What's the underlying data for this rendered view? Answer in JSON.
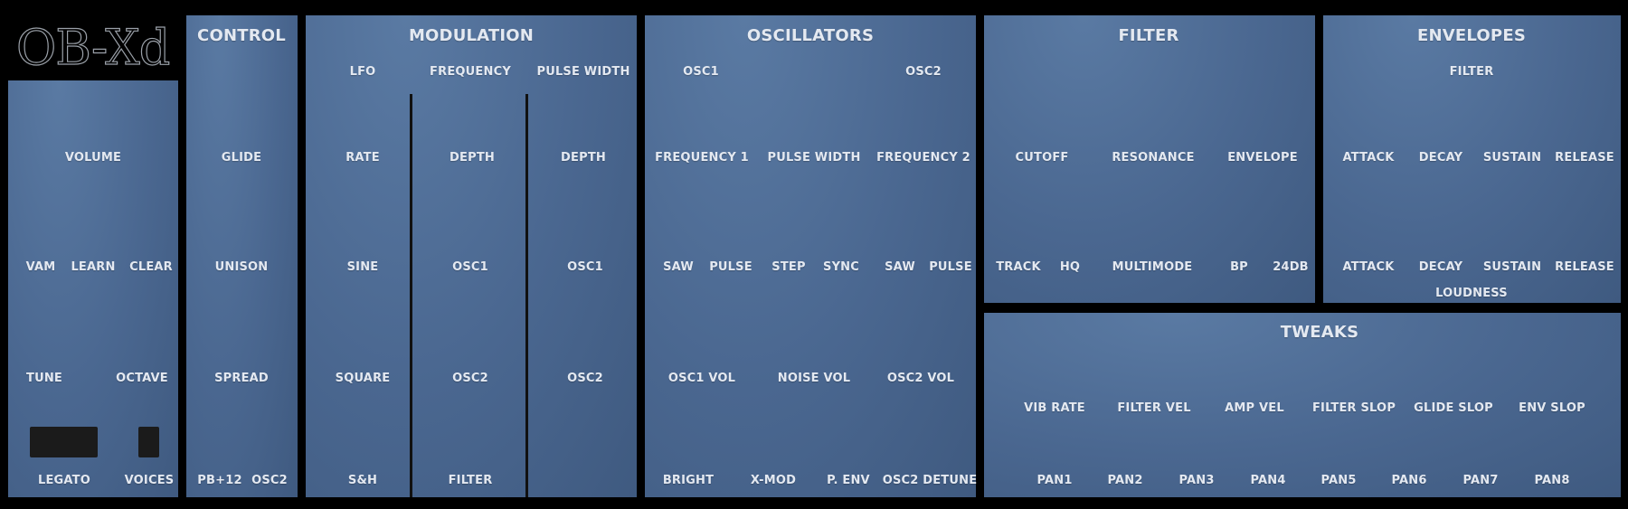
{
  "logo": "OB-Xd",
  "master": {
    "volume": "VOLUME",
    "vam": "VAM",
    "learn": "LEARN",
    "clear": "CLEAR",
    "tune": "TUNE",
    "octave": "OCTAVE",
    "legato": "LEGATO",
    "voices": "VOICES"
  },
  "control": {
    "title": "CONTROL",
    "glide": "GLIDE",
    "unison": "UNISON",
    "spread": "SPREAD",
    "pb12": "PB+12",
    "osc2": "OSC2"
  },
  "modulation": {
    "title": "MODULATION",
    "lfo": "LFO",
    "frequency": "FREQUENCY",
    "pulse_width": "PULSE WIDTH",
    "rate": "RATE",
    "depth1": "DEPTH",
    "depth2": "DEPTH",
    "sine": "SINE",
    "osc1_a": "OSC1",
    "osc1_b": "OSC1",
    "square": "SQUARE",
    "osc2_a": "OSC2",
    "osc2_b": "OSC2",
    "sh": "S&H",
    "filter": "FILTER"
  },
  "oscillators": {
    "title": "OSCILLATORS",
    "osc1": "OSC1",
    "osc2": "OSC2",
    "frequency1": "FREQUENCY 1",
    "pulse_width": "PULSE WIDTH",
    "frequency2": "FREQUENCY 2",
    "saw1": "SAW",
    "pulse1": "PULSE",
    "step": "STEP",
    "sync": "SYNC",
    "saw2": "SAW",
    "pulse2": "PULSE",
    "osc1_vol": "OSC1 VOL",
    "noise_vol": "NOISE VOL",
    "osc2_vol": "OSC2 VOL",
    "bright": "BRIGHT",
    "xmod": "X-MOD",
    "penv": "P. ENV",
    "osc2_detune": "OSC2 DETUNE"
  },
  "filter": {
    "title": "FILTER",
    "cutoff": "CUTOFF",
    "resonance": "RESONANCE",
    "envelope": "ENVELOPE",
    "track": "TRACK",
    "hq": "HQ",
    "multimode": "MULTIMODE",
    "bp": "BP",
    "db24": "24DB"
  },
  "envelopes": {
    "title": "ENVELOPES",
    "filter": "FILTER",
    "loudness": "LOUDNESS",
    "f_attack": "ATTACK",
    "f_decay": "DECAY",
    "f_sustain": "SUSTAIN",
    "f_release": "RELEASE",
    "l_attack": "ATTACK",
    "l_decay": "DECAY",
    "l_sustain": "SUSTAIN",
    "l_release": "RELEASE"
  },
  "tweaks": {
    "title": "TWEAKS",
    "vib_rate": "VIB RATE",
    "filter_vel": "FILTER VEL",
    "amp_vel": "AMP VEL",
    "filter_slop": "FILTER SLOP",
    "glide_slop": "GLIDE SLOP",
    "env_slop": "ENV SLOP",
    "pan1": "PAN1",
    "pan2": "PAN2",
    "pan3": "PAN3",
    "pan4": "PAN4",
    "pan5": "PAN5",
    "pan6": "PAN6",
    "pan7": "PAN7",
    "pan8": "PAN8"
  },
  "colors": {
    "panel": "#4d6b94",
    "background": "#000000",
    "label": "#e4e9f1"
  }
}
